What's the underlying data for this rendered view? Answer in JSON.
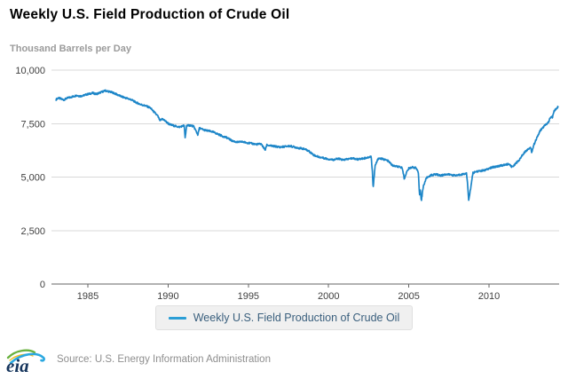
{
  "header": {
    "title": "Weekly U.S. Field Production of Crude Oil",
    "units": "Thousand Barrels per Day"
  },
  "legend": {
    "label": "Weekly U.S. Field Production of Crude Oil"
  },
  "footer": {
    "logo_text": "eia",
    "source": "Source: U.S. Energy Information Administration"
  },
  "colors": {
    "line": "#1d86c8",
    "legend_swatch": "#2b9ed6",
    "legend_text": "#3a5f7d",
    "grid": "#d9d9d9",
    "axis": "#666666",
    "tick_label": "#404040",
    "logo_navy": "#17365d",
    "logo_green": "#69b13f",
    "logo_yellow": "#f3c02a",
    "logo_blue": "#2ba8e0"
  },
  "chart_data": {
    "type": "line",
    "title": "Weekly U.S. Field Production of Crude Oil",
    "ylabel": "Thousand Barrels per Day",
    "xlabel": "",
    "grid": true,
    "legend_position": "bottom",
    "x_range": [
      1982.73,
      2014.37
    ],
    "y_range": [
      0,
      10000
    ],
    "x_ticks": [
      {
        "value": 1985,
        "label": "1985"
      },
      {
        "value": 1990,
        "label": "1990"
      },
      {
        "value": 1995,
        "label": "1995"
      },
      {
        "value": 2000,
        "label": "2000"
      },
      {
        "value": 2005,
        "label": "2005"
      },
      {
        "value": 2010,
        "label": "2010"
      }
    ],
    "y_ticks": [
      {
        "value": 0,
        "label": "0"
      },
      {
        "value": 2500,
        "label": "2,500"
      },
      {
        "value": 5000,
        "label": "5,000"
      },
      {
        "value": 7500,
        "label": "7,500"
      },
      {
        "value": 10000,
        "label": "10,000"
      }
    ],
    "noise_amplitude": 40,
    "samples_per_year": 52,
    "series": [
      {
        "name": "Weekly U.S. Field Production of Crude Oil",
        "color": "#1d86c8",
        "points": [
          [
            1983.02,
            8630
          ],
          [
            1983.15,
            8700
          ],
          [
            1983.3,
            8660
          ],
          [
            1983.5,
            8610
          ],
          [
            1983.7,
            8690
          ],
          [
            1983.9,
            8730
          ],
          [
            1984.1,
            8770
          ],
          [
            1984.3,
            8820
          ],
          [
            1984.5,
            8780
          ],
          [
            1984.7,
            8810
          ],
          [
            1984.9,
            8860
          ],
          [
            1985.1,
            8890
          ],
          [
            1985.3,
            8930
          ],
          [
            1985.5,
            8880
          ],
          [
            1985.7,
            8930
          ],
          [
            1985.9,
            8990
          ],
          [
            1986.1,
            9040
          ],
          [
            1986.3,
            9000
          ],
          [
            1986.5,
            8960
          ],
          [
            1986.7,
            8900
          ],
          [
            1986.9,
            8830
          ],
          [
            1987.1,
            8760
          ],
          [
            1987.4,
            8690
          ],
          [
            1987.7,
            8620
          ],
          [
            1988.0,
            8490
          ],
          [
            1988.3,
            8390
          ],
          [
            1988.6,
            8330
          ],
          [
            1988.9,
            8230
          ],
          [
            1989.1,
            8060
          ],
          [
            1989.35,
            7860
          ],
          [
            1989.5,
            7630
          ],
          [
            1989.65,
            7730
          ],
          [
            1989.9,
            7570
          ],
          [
            1990.1,
            7460
          ],
          [
            1990.4,
            7390
          ],
          [
            1990.7,
            7340
          ],
          [
            1991.0,
            7410
          ],
          [
            1991.06,
            6820
          ],
          [
            1991.15,
            7400
          ],
          [
            1991.4,
            7420
          ],
          [
            1991.6,
            7360
          ],
          [
            1991.85,
            6980
          ],
          [
            1991.95,
            7290
          ],
          [
            1992.2,
            7210
          ],
          [
            1992.5,
            7160
          ],
          [
            1992.8,
            7110
          ],
          [
            1993.1,
            7010
          ],
          [
            1993.4,
            6910
          ],
          [
            1993.7,
            6830
          ],
          [
            1994.0,
            6690
          ],
          [
            1994.3,
            6630
          ],
          [
            1994.6,
            6650
          ],
          [
            1994.9,
            6610
          ],
          [
            1995.2,
            6570
          ],
          [
            1995.5,
            6530
          ],
          [
            1995.8,
            6550
          ],
          [
            1996.05,
            6260
          ],
          [
            1996.15,
            6500
          ],
          [
            1996.4,
            6460
          ],
          [
            1996.7,
            6430
          ],
          [
            1997.0,
            6400
          ],
          [
            1997.3,
            6430
          ],
          [
            1997.6,
            6450
          ],
          [
            1997.9,
            6400
          ],
          [
            1998.2,
            6350
          ],
          [
            1998.5,
            6310
          ],
          [
            1998.8,
            6200
          ],
          [
            1999.1,
            6020
          ],
          [
            1999.4,
            5940
          ],
          [
            1999.7,
            5890
          ],
          [
            2000.0,
            5840
          ],
          [
            2000.3,
            5810
          ],
          [
            2000.6,
            5860
          ],
          [
            2000.9,
            5800
          ],
          [
            2001.2,
            5840
          ],
          [
            2001.5,
            5880
          ],
          [
            2001.8,
            5830
          ],
          [
            2002.1,
            5860
          ],
          [
            2002.4,
            5910
          ],
          [
            2002.65,
            5960
          ],
          [
            2002.73,
            5300
          ],
          [
            2002.78,
            4480
          ],
          [
            2002.9,
            5520
          ],
          [
            2003.1,
            5880
          ],
          [
            2003.4,
            5840
          ],
          [
            2003.7,
            5760
          ],
          [
            2004.0,
            5530
          ],
          [
            2004.3,
            5490
          ],
          [
            2004.6,
            5430
          ],
          [
            2004.72,
            4900
          ],
          [
            2004.85,
            5210
          ],
          [
            2005.0,
            5400
          ],
          [
            2005.2,
            5460
          ],
          [
            2005.45,
            5430
          ],
          [
            2005.6,
            5180
          ],
          [
            2005.67,
            4150
          ],
          [
            2005.72,
            4480
          ],
          [
            2005.78,
            3850
          ],
          [
            2005.9,
            4560
          ],
          [
            2006.1,
            4960
          ],
          [
            2006.4,
            5090
          ],
          [
            2006.7,
            5130
          ],
          [
            2007.0,
            5070
          ],
          [
            2007.3,
            5130
          ],
          [
            2007.6,
            5110
          ],
          [
            2007.9,
            5070
          ],
          [
            2008.2,
            5110
          ],
          [
            2008.45,
            5150
          ],
          [
            2008.6,
            5170
          ],
          [
            2008.67,
            4620
          ],
          [
            2008.73,
            3900
          ],
          [
            2008.85,
            4460
          ],
          [
            2009.0,
            5190
          ],
          [
            2009.2,
            5260
          ],
          [
            2009.5,
            5290
          ],
          [
            2009.8,
            5330
          ],
          [
            2010.1,
            5430
          ],
          [
            2010.4,
            5490
          ],
          [
            2010.7,
            5530
          ],
          [
            2011.0,
            5570
          ],
          [
            2011.2,
            5610
          ],
          [
            2011.45,
            5470
          ],
          [
            2011.7,
            5670
          ],
          [
            2011.9,
            5810
          ],
          [
            2012.1,
            6060
          ],
          [
            2012.35,
            6260
          ],
          [
            2012.6,
            6390
          ],
          [
            2012.66,
            6150
          ],
          [
            2012.8,
            6520
          ],
          [
            2013.0,
            6860
          ],
          [
            2013.2,
            7180
          ],
          [
            2013.45,
            7390
          ],
          [
            2013.7,
            7560
          ],
          [
            2013.85,
            7830
          ],
          [
            2013.95,
            7780
          ],
          [
            2014.05,
            8060
          ],
          [
            2014.2,
            8210
          ],
          [
            2014.3,
            8280
          ]
        ]
      }
    ]
  }
}
